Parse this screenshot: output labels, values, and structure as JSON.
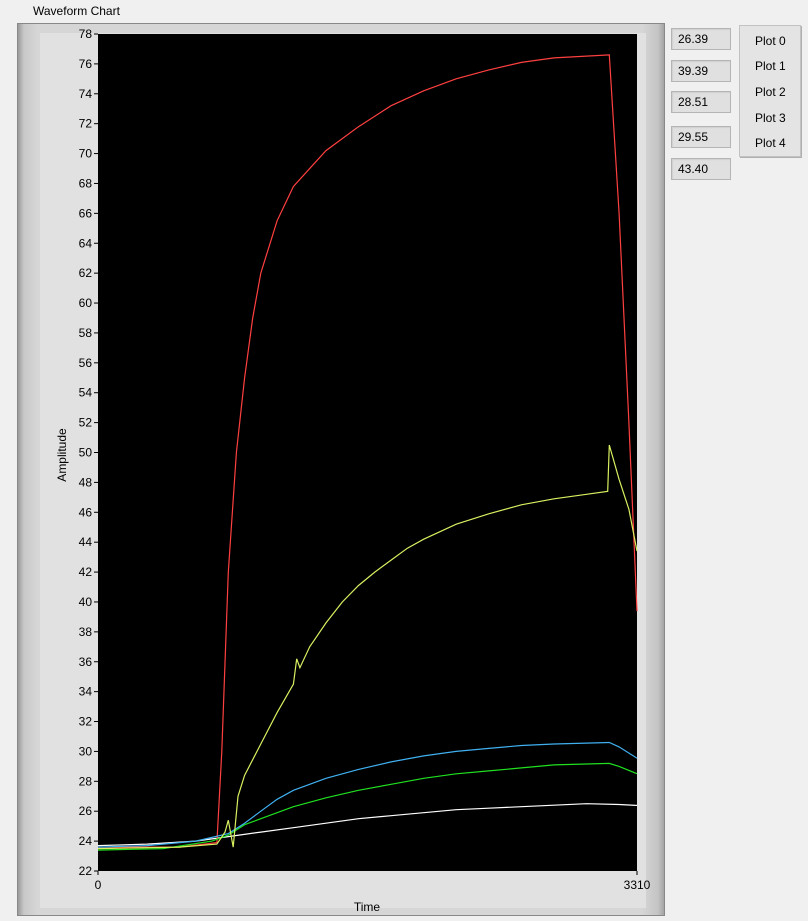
{
  "chart_title": "Waveform Chart",
  "readouts": [
    "26.39",
    "39.39",
    "28.51",
    "29.55",
    "43.40"
  ],
  "legend": [
    "Plot 0",
    "Plot 1",
    "Plot 2",
    "Plot 3",
    "Plot 4"
  ],
  "chart_data": {
    "type": "line",
    "xlabel": "Time",
    "ylabel": "Amplitude",
    "xlim": [
      0,
      3310
    ],
    "ylim": [
      22,
      78
    ],
    "y_ticks": [
      22,
      24,
      26,
      28,
      30,
      32,
      34,
      36,
      38,
      40,
      42,
      44,
      46,
      48,
      50,
      52,
      54,
      56,
      58,
      60,
      62,
      64,
      66,
      68,
      70,
      72,
      74,
      76,
      78
    ],
    "x_ticks": [
      0,
      3310
    ],
    "background": "#000000",
    "grid": false,
    "series": [
      {
        "color": "#ffffff",
        "points": [
          [
            0,
            23.7
          ],
          [
            300,
            23.8
          ],
          [
            600,
            24.0
          ],
          [
            800,
            24.3
          ],
          [
            1000,
            24.6
          ],
          [
            1200,
            24.9
          ],
          [
            1400,
            25.2
          ],
          [
            1600,
            25.5
          ],
          [
            1800,
            25.7
          ],
          [
            2000,
            25.9
          ],
          [
            2200,
            26.1
          ],
          [
            2400,
            26.2
          ],
          [
            2600,
            26.3
          ],
          [
            2800,
            26.4
          ],
          [
            3000,
            26.5
          ],
          [
            3200,
            26.45
          ],
          [
            3310,
            26.39
          ]
        ]
      },
      {
        "color": "#ff4040",
        "points": [
          [
            0,
            23.6
          ],
          [
            500,
            23.6
          ],
          [
            730,
            23.9
          ],
          [
            760,
            30
          ],
          [
            800,
            42
          ],
          [
            850,
            50
          ],
          [
            900,
            55
          ],
          [
            950,
            59
          ],
          [
            1000,
            62
          ],
          [
            1100,
            65.5
          ],
          [
            1200,
            67.8
          ],
          [
            1400,
            70.2
          ],
          [
            1600,
            71.8
          ],
          [
            1800,
            73.2
          ],
          [
            2000,
            74.2
          ],
          [
            2200,
            75
          ],
          [
            2400,
            75.6
          ],
          [
            2600,
            76.1
          ],
          [
            2800,
            76.4
          ],
          [
            3140,
            76.6
          ],
          [
            3200,
            66
          ],
          [
            3260,
            52
          ],
          [
            3310,
            39.39
          ]
        ]
      },
      {
        "color": "#20e020",
        "points": [
          [
            0,
            23.4
          ],
          [
            400,
            23.5
          ],
          [
            700,
            24.0
          ],
          [
            800,
            24.4
          ],
          [
            900,
            25.1
          ],
          [
            1000,
            25.5
          ],
          [
            1200,
            26.3
          ],
          [
            1400,
            26.9
          ],
          [
            1600,
            27.4
          ],
          [
            1800,
            27.8
          ],
          [
            2000,
            28.2
          ],
          [
            2200,
            28.5
          ],
          [
            2400,
            28.7
          ],
          [
            2600,
            28.9
          ],
          [
            2800,
            29.1
          ],
          [
            3140,
            29.2
          ],
          [
            3200,
            29.0
          ],
          [
            3310,
            28.51
          ]
        ]
      },
      {
        "color": "#40b0f0",
        "points": [
          [
            0,
            23.6
          ],
          [
            300,
            23.7
          ],
          [
            600,
            24.0
          ],
          [
            800,
            24.5
          ],
          [
            900,
            25.2
          ],
          [
            1000,
            26.0
          ],
          [
            1100,
            26.8
          ],
          [
            1200,
            27.4
          ],
          [
            1400,
            28.2
          ],
          [
            1600,
            28.8
          ],
          [
            1800,
            29.3
          ],
          [
            2000,
            29.7
          ],
          [
            2200,
            30.0
          ],
          [
            2400,
            30.2
          ],
          [
            2600,
            30.4
          ],
          [
            2800,
            30.5
          ],
          [
            3140,
            30.6
          ],
          [
            3200,
            30.3
          ],
          [
            3310,
            29.55
          ]
        ]
      },
      {
        "color": "#d8f060",
        "points": [
          [
            0,
            23.5
          ],
          [
            500,
            23.6
          ],
          [
            730,
            23.8
          ],
          [
            780,
            24.6
          ],
          [
            800,
            25.4
          ],
          [
            830,
            23.6
          ],
          [
            860,
            27
          ],
          [
            900,
            28.4
          ],
          [
            1000,
            30.5
          ],
          [
            1100,
            32.6
          ],
          [
            1200,
            34.5
          ],
          [
            1220,
            36.2
          ],
          [
            1240,
            35.6
          ],
          [
            1300,
            37
          ],
          [
            1400,
            38.6
          ],
          [
            1500,
            40
          ],
          [
            1600,
            41.1
          ],
          [
            1700,
            42
          ],
          [
            1800,
            42.8
          ],
          [
            1900,
            43.6
          ],
          [
            2000,
            44.2
          ],
          [
            2200,
            45.2
          ],
          [
            2400,
            45.9
          ],
          [
            2600,
            46.5
          ],
          [
            2800,
            46.9
          ],
          [
            3000,
            47.2
          ],
          [
            3130,
            47.4
          ],
          [
            3140,
            50.5
          ],
          [
            3200,
            48.2
          ],
          [
            3260,
            46.2
          ],
          [
            3310,
            43.4
          ]
        ]
      }
    ]
  }
}
